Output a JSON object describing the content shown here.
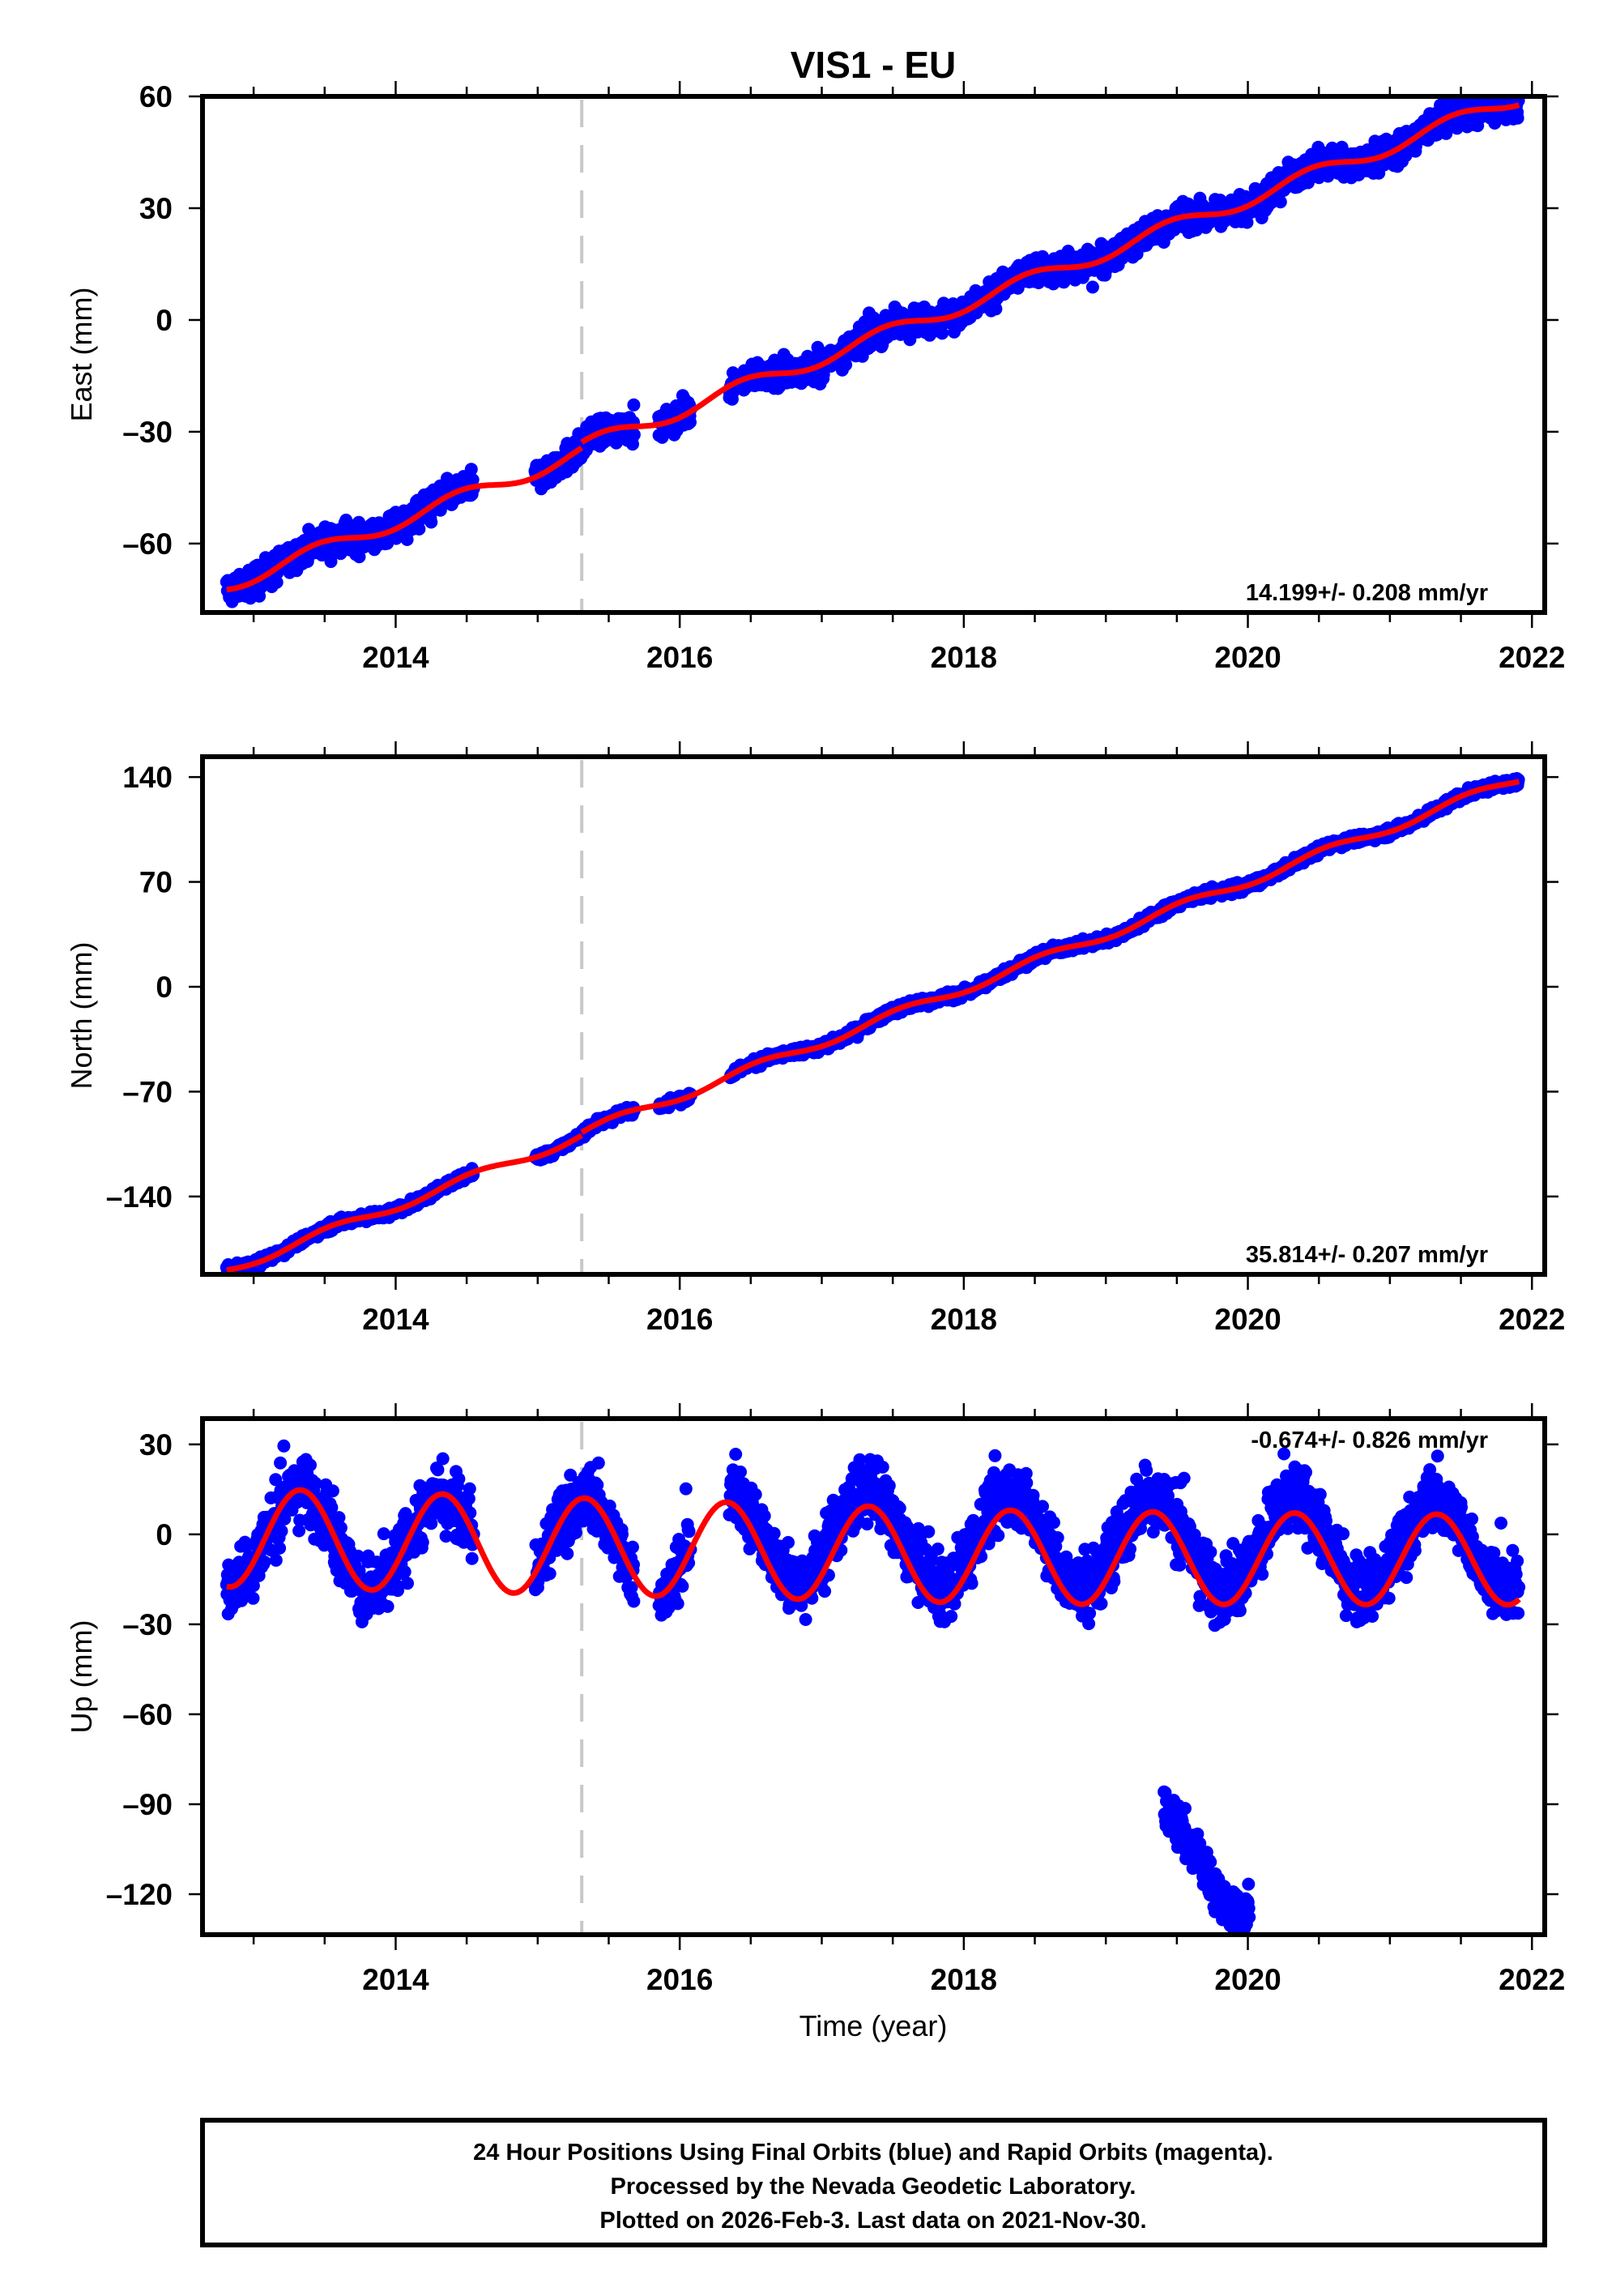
{
  "title": "VIS1 - EU",
  "xlabel": "Time (year)",
  "footer": {
    "lines": [
      "24 Hour Positions Using Final Orbits (blue) and Rapid Orbits (magenta).",
      "Processed by the Nevada Geodetic Laboratory.",
      "Plotted on 2026-Feb-3. Last data on 2021-Nov-30."
    ]
  },
  "colors": {
    "data": "#0000ff",
    "model": "#ff0000",
    "event_line": "#c8c8c8",
    "axes": "#000000"
  },
  "chart_data": [
    {
      "type": "scatter",
      "name": "east",
      "ylabel": "East (mm)",
      "rate_label": "14.199+/- 0.208 mm/yr",
      "xlim": [
        2012.64,
        2022.09
      ],
      "ylim": [
        -78.5,
        60
      ],
      "x_ticks": [
        2014,
        2016,
        2018,
        2020,
        2022
      ],
      "x_tick_labels": [
        "2014",
        "2016",
        "2018",
        "2020",
        "2022"
      ],
      "y_ticks": [
        -60,
        -30,
        0,
        30,
        60
      ],
      "y_tick_labels": [
        "–60",
        "–30",
        "0",
        "30",
        "60"
      ],
      "event_line_x": 2015.31,
      "data_span": [
        2012.81,
        2021.91
      ],
      "data_gaps": [
        [
          2014.55,
          2014.98
        ],
        [
          2015.68,
          2015.85
        ],
        [
          2016.08,
          2016.35
        ]
      ],
      "model": {
        "ref_year": 2017.5,
        "offset": -4.5,
        "rate": 14.199,
        "annual_amp": 2.0,
        "annual_peak": 0.45,
        "step_at": 2015.31,
        "step": 1.5,
        "noise": 2.0
      },
      "series": [
        {
          "name": "24 Hour Positions (Final Orbits)",
          "kind": "points"
        },
        {
          "name": "Model fit",
          "kind": "line"
        }
      ]
    },
    {
      "type": "scatter",
      "name": "north",
      "ylabel": "North (mm)",
      "rate_label": "35.814+/- 0.207 mm/yr",
      "xlim": [
        2012.64,
        2022.09
      ],
      "ylim": [
        -192,
        153.6
      ],
      "x_ticks": [
        2014,
        2016,
        2018,
        2020,
        2022
      ],
      "x_tick_labels": [
        "2014",
        "2016",
        "2018",
        "2020",
        "2022"
      ],
      "y_ticks": [
        -140,
        -70,
        0,
        70,
        140
      ],
      "y_tick_labels": [
        "–140",
        "–70",
        "0",
        "70",
        "140"
      ],
      "event_line_x": 2015.31,
      "data_span": [
        2012.81,
        2021.91
      ],
      "data_gaps": [
        [
          2014.55,
          2014.98
        ],
        [
          2015.68,
          2015.85
        ],
        [
          2016.08,
          2016.35
        ]
      ],
      "model": {
        "ref_year": 2017.5,
        "offset": -21,
        "rate": 35.814,
        "annual_amp": 3.0,
        "annual_peak": 0.55,
        "step_at": 2015.31,
        "step": 2.0,
        "noise": 1.6
      },
      "series": [
        {
          "name": "24 Hour Positions (Final Orbits)",
          "kind": "points"
        },
        {
          "name": "Model fit",
          "kind": "line"
        }
      ]
    },
    {
      "type": "scatter",
      "name": "up",
      "ylabel": "Up (mm)",
      "rate_label": "-0.674+/- 0.826 mm/yr",
      "xlim": [
        2012.64,
        2022.09
      ],
      "ylim": [
        -133.5,
        38.6
      ],
      "x_ticks": [
        2014,
        2016,
        2018,
        2020,
        2022
      ],
      "x_tick_labels": [
        "2014",
        "2016",
        "2018",
        "2020",
        "2022"
      ],
      "y_ticks": [
        -120,
        -90,
        -60,
        -30,
        0,
        30
      ],
      "y_tick_labels": [
        "–120",
        "–90",
        "–60",
        "–30",
        "0",
        "30"
      ],
      "event_line_x": 2015.31,
      "data_span": [
        2012.81,
        2021.91
      ],
      "data_gaps": [
        [
          2014.55,
          2014.98
        ],
        [
          2015.68,
          2015.85
        ],
        [
          2016.08,
          2016.35
        ]
      ],
      "model": {
        "ref_year": 2017.5,
        "offset": -5.5,
        "rate": -0.674,
        "annual_amp": 16.5,
        "annual_peak": 0.33,
        "step_at": 2015.31,
        "step": 0,
        "noise": 5.5,
        "data_bias": 6.5
      },
      "outlier_cluster": {
        "x_range": [
          2019.41,
          2020.01
        ],
        "y_start": -90,
        "y_end": -125
      },
      "series": [
        {
          "name": "24 Hour Positions (Final Orbits)",
          "kind": "points"
        },
        {
          "name": "Model fit",
          "kind": "line"
        }
      ]
    }
  ]
}
